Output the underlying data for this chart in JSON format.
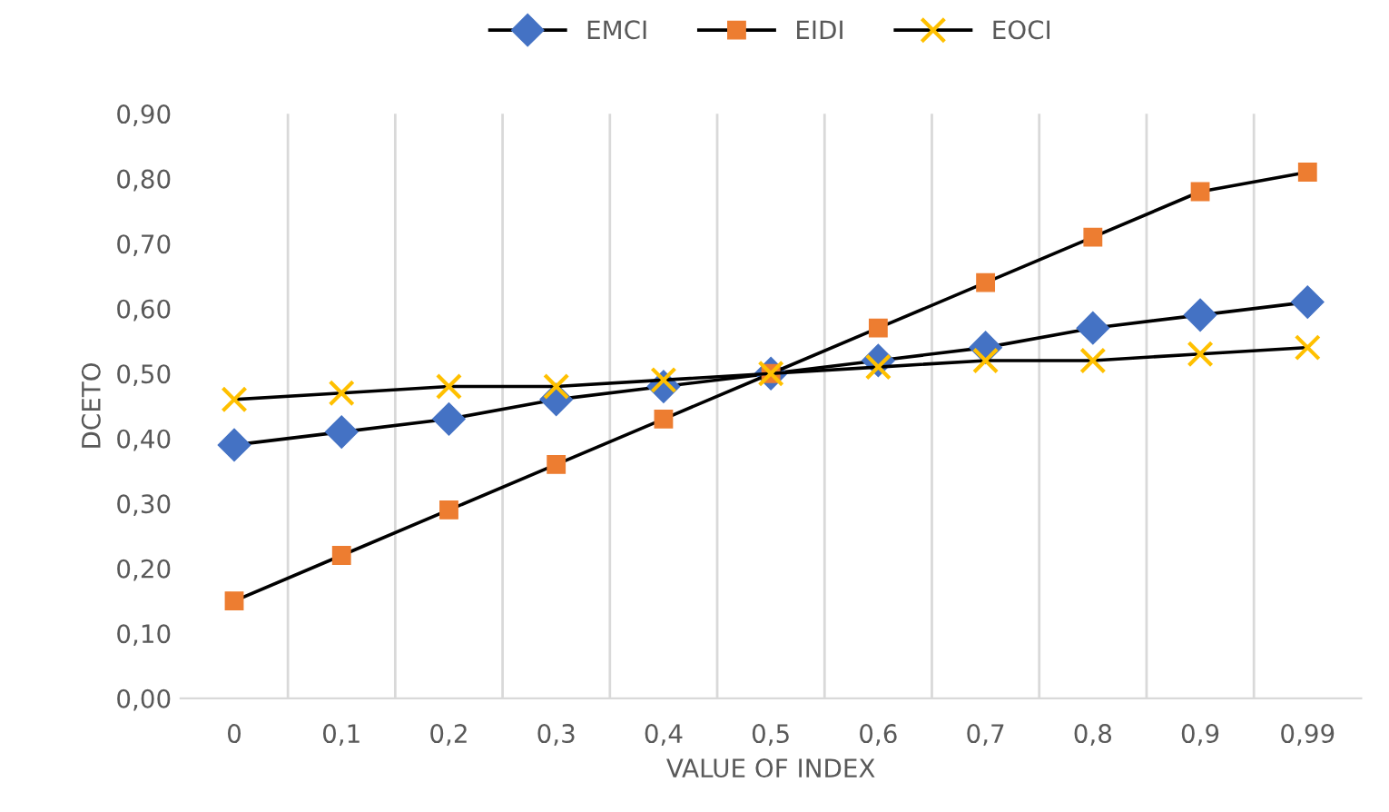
{
  "chart_data": {
    "type": "line",
    "xlabel": "VALUE OF INDEX",
    "ylabel": "DCETO",
    "categories": [
      "0",
      "0,1",
      "0,2",
      "0,3",
      "0,4",
      "0,5",
      "0,6",
      "0,7",
      "0,8",
      "0,9",
      "0,99"
    ],
    "series": [
      {
        "name": "EMCI",
        "color": "#4472c4",
        "marker": "diamond",
        "values": [
          0.39,
          0.41,
          0.43,
          0.46,
          0.48,
          0.5,
          0.52,
          0.54,
          0.57,
          0.59,
          0.61
        ]
      },
      {
        "name": "EIDI",
        "color": "#ed7d31",
        "marker": "square",
        "values": [
          0.15,
          0.22,
          0.29,
          0.36,
          0.43,
          0.5,
          0.57,
          0.64,
          0.71,
          0.78,
          0.81
        ]
      },
      {
        "name": "EOCI",
        "color": "#ffc000",
        "marker": "cross",
        "values": [
          0.46,
          0.47,
          0.48,
          0.48,
          0.49,
          0.5,
          0.51,
          0.52,
          0.52,
          0.53,
          0.54
        ]
      }
    ],
    "ylim": [
      0,
      0.9
    ],
    "yticks": [
      {
        "value": 0,
        "label": "0,00"
      },
      {
        "value": 0.1,
        "label": "0,10"
      },
      {
        "value": 0.2,
        "label": "0,20"
      },
      {
        "value": 0.3,
        "label": "0,30"
      },
      {
        "value": 0.4,
        "label": "0,40"
      },
      {
        "value": 0.5,
        "label": "0,50"
      },
      {
        "value": 0.6,
        "label": "0,60"
      },
      {
        "value": 0.7,
        "label": "0,70"
      },
      {
        "value": 0.8,
        "label": "0,80"
      },
      {
        "value": 0.9,
        "label": "0,90"
      }
    ],
    "grid": "x",
    "legend": "top",
    "line_style": "solid"
  }
}
